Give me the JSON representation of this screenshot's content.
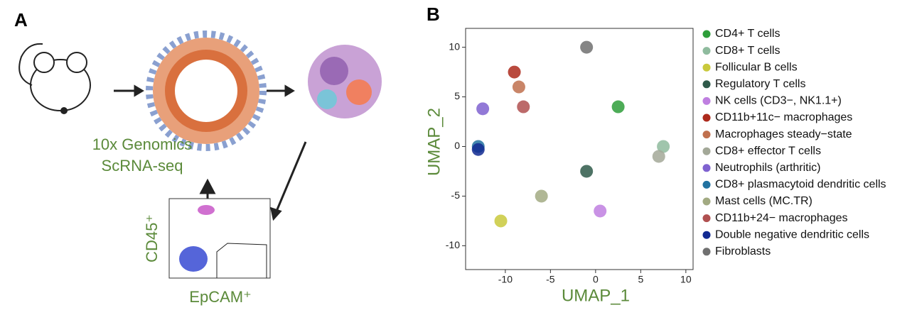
{
  "panel_a": {
    "label": "A",
    "method_line1": "10x Genomics",
    "method_line2": "ScRNA-seq",
    "y_gate": "CD45⁺",
    "x_gate": "EpCAM⁺"
  },
  "chart_data": {
    "type": "scatter",
    "panel_label": "B",
    "xlabel": "UMAP_1",
    "ylabel": "UMAP_2",
    "xlim": [
      -14.4,
      10.8
    ],
    "ylim": [
      -12.4,
      11.9
    ],
    "xticks": [
      -10,
      -5,
      0,
      5,
      10
    ],
    "yticks": [
      -10,
      -5,
      0,
      5,
      10
    ],
    "series": [
      {
        "name": "CD4+ T cells",
        "color": "#2e9e3a",
        "x": [
          2.5
        ],
        "values": [
          4
        ]
      },
      {
        "name": "CD8+ T cells",
        "color": "#8fbb9e",
        "x": [
          7.5
        ],
        "values": [
          0
        ]
      },
      {
        "name": "Follicular B cells",
        "color": "#c9c93c",
        "x": [
          -10.5
        ],
        "values": [
          -7.5
        ]
      },
      {
        "name": "Regulatory T cells",
        "color": "#2f5a4a",
        "x": [
          -1
        ],
        "values": [
          -2.5
        ]
      },
      {
        "name": "NK cells (CD3−, NK1.1+)",
        "color": "#bf7fe0",
        "x": [
          0.5
        ],
        "values": [
          -6.5
        ]
      },
      {
        "name": "CD11b+11c− macrophages",
        "color": "#ad2a1c",
        "x": [
          -9
        ],
        "values": [
          7.5
        ]
      },
      {
        "name": "Macrophages steady−state",
        "color": "#c0704e",
        "x": [
          -8.5
        ],
        "values": [
          6
        ]
      },
      {
        "name": "CD8+ effector T cells",
        "color": "#a3a898",
        "x": [
          7
        ],
        "values": [
          -1
        ]
      },
      {
        "name": "Neutrophils (arthritic)",
        "color": "#7f62d0",
        "x": [
          -12.5
        ],
        "values": [
          3.8
        ]
      },
      {
        "name": "CD8+ plasmacytoid dendritic cells",
        "color": "#2272a0",
        "x": [
          -13
        ],
        "values": [
          0
        ]
      },
      {
        "name": "Mast cells (MC.TR)",
        "color": "#a2aa82",
        "x": [
          -6
        ],
        "values": [
          -5
        ]
      },
      {
        "name": "CD11b+24− macrophages",
        "color": "#b05050",
        "x": [
          -8
        ],
        "values": [
          4
        ]
      },
      {
        "name": "Double negative dendritic cells",
        "color": "#122a92",
        "x": [
          -13
        ],
        "values": [
          -0.3
        ]
      },
      {
        "name": "Fibroblasts",
        "color": "#707070",
        "x": [
          -1
        ],
        "values": [
          10
        ]
      }
    ]
  }
}
